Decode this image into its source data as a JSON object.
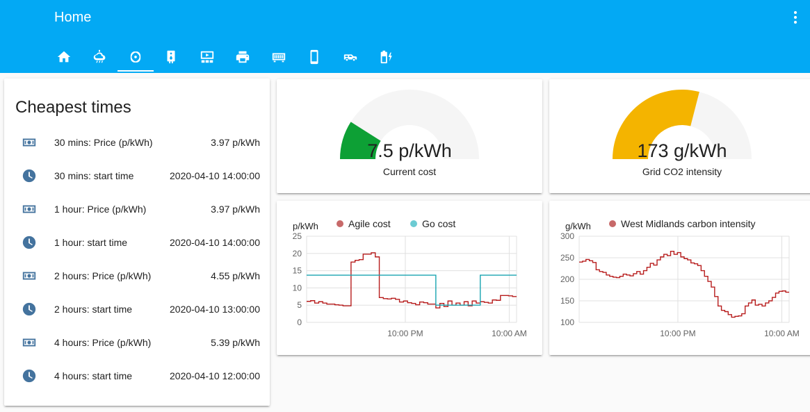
{
  "header": {
    "title": "Home",
    "tabs": [
      {
        "icon": "home-icon"
      },
      {
        "icon": "weather-icon"
      },
      {
        "icon": "atom-icon"
      },
      {
        "icon": "water-heater-icon"
      },
      {
        "icon": "media-icon"
      },
      {
        "icon": "printer-icon"
      },
      {
        "icon": "video-input-icon"
      },
      {
        "icon": "phone-icon"
      },
      {
        "icon": "car-icon"
      },
      {
        "icon": "battery-charging-icon"
      }
    ],
    "active_tab": 2
  },
  "cheapest": {
    "title": "Cheapest times",
    "rows": [
      {
        "icon": "cash-icon",
        "name": "30 mins: Price (p/kWh)",
        "value": "3.97 p/kWh"
      },
      {
        "icon": "clock-icon",
        "name": "30 mins: start time",
        "value": "2020-04-10 14:00:00"
      },
      {
        "icon": "cash-icon",
        "name": "1 hour: Price (p/kWh)",
        "value": "3.97 p/kWh"
      },
      {
        "icon": "clock-icon",
        "name": "1 hour: start time",
        "value": "2020-04-10 14:00:00"
      },
      {
        "icon": "cash-icon",
        "name": "2 hours: Price (p/kWh)",
        "value": "4.55 p/kWh"
      },
      {
        "icon": "clock-icon",
        "name": "2 hours: start time",
        "value": "2020-04-10 13:00:00"
      },
      {
        "icon": "cash-icon",
        "name": "4 hours: Price (p/kWh)",
        "value": "5.39 p/kWh"
      },
      {
        "icon": "clock-icon",
        "name": "4 hours: start time",
        "value": "2020-04-10 12:00:00"
      }
    ]
  },
  "gauges": {
    "cost": {
      "value_text": "7.5 p/kWh",
      "name": "Current cost",
      "fraction": 0.18,
      "color": "#0da035"
    },
    "co2": {
      "value_text": "173 g/kWh",
      "name": "Grid CO2 intensity",
      "fraction": 0.58,
      "color": "#f4b400"
    }
  },
  "chart_data": [
    {
      "type": "line",
      "ylabel": "p/kWh",
      "ylim": [
        0,
        25
      ],
      "yticks": [
        "0",
        "5",
        "10",
        "15",
        "20",
        "25"
      ],
      "xticks": [
        "10:00 PM",
        "10:00 AM"
      ],
      "legend": "top",
      "series": [
        {
          "name": "Agile cost",
          "color": "#b71c1c",
          "legend_color": "#c76969",
          "values": [
            6.1,
            6.3,
            5.6,
            6.0,
            5.6,
            5.3,
            5.3,
            5.1,
            5.0,
            4.8,
            4.8,
            17.5,
            18.0,
            18.2,
            19.8,
            19.8,
            20.2,
            19.0,
            7.2,
            6.9,
            6.8,
            7.0,
            6.7,
            5.9,
            6.2,
            5.7,
            5.5,
            5.1,
            5.9,
            5.7,
            5.3,
            5.3,
            4.2,
            5.5,
            4.6,
            6.2,
            5.0,
            5.6,
            5.0,
            6.0,
            4.8,
            6.2,
            5.6,
            6.0,
            5.8,
            5.6,
            6.5,
            6.4,
            7.8,
            7.8,
            7.7,
            7.5
          ]
        },
        {
          "name": "Go cost",
          "color": "#18a4b1",
          "legend_color": "#6ccbd3",
          "values": [
            13.7,
            13.7,
            13.7,
            13.7,
            13.7,
            13.7,
            13.7,
            13.7,
            13.7,
            13.7,
            13.7,
            13.7,
            13.7,
            13.7,
            13.7,
            13.7,
            13.7,
            13.7,
            13.7,
            13.7,
            13.7,
            13.7,
            13.7,
            13.7,
            13.7,
            13.7,
            13.7,
            13.7,
            13.7,
            13.7,
            13.7,
            13.7,
            5.0,
            5.0,
            5.0,
            5.0,
            5.0,
            5.0,
            5.0,
            5.0,
            5.0,
            5.0,
            5.0,
            13.7,
            13.7,
            13.7,
            13.7,
            13.7,
            13.7,
            13.7,
            13.7,
            13.7
          ]
        }
      ]
    },
    {
      "type": "line",
      "ylabel": "g/kWh",
      "ylim": [
        100,
        300
      ],
      "yticks": [
        "100",
        "150",
        "200",
        "250",
        "300"
      ],
      "xticks": [
        "10:00 PM",
        "10:00 AM"
      ],
      "legend": "top",
      "series": [
        {
          "name": "West Midlands carbon intensity",
          "color": "#b71c1c",
          "legend_color": "#c76969",
          "values": [
            240,
            242,
            246,
            243,
            239,
            222,
            218,
            216,
            210,
            207,
            205,
            204,
            207,
            212,
            210,
            208,
            213,
            218,
            212,
            220,
            228,
            237,
            233,
            245,
            252,
            258,
            255,
            265,
            258,
            262,
            252,
            248,
            245,
            238,
            236,
            232,
            220,
            207,
            195,
            182,
            160,
            138,
            128,
            125,
            118,
            112,
            114,
            115,
            120,
            138,
            145,
            152,
            140,
            142,
            138,
            145,
            150,
            158,
            168,
            172,
            173,
            170
          ]
        }
      ]
    }
  ]
}
